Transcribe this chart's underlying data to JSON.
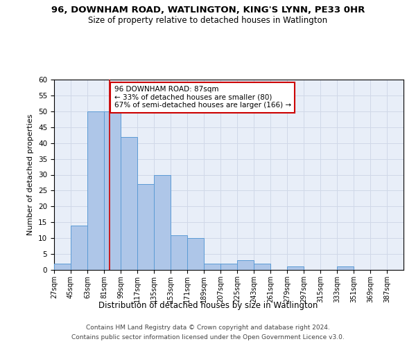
{
  "title": "96, DOWNHAM ROAD, WATLINGTON, KING'S LYNN, PE33 0HR",
  "subtitle": "Size of property relative to detached houses in Watlington",
  "xlabel": "Distribution of detached houses by size in Watlington",
  "ylabel": "Number of detached properties",
  "bar_values": [
    2,
    14,
    50,
    50,
    42,
    27,
    30,
    11,
    10,
    2,
    2,
    3,
    2,
    0,
    1,
    0,
    0,
    1
  ],
  "bin_labels": [
    "27sqm",
    "45sqm",
    "63sqm",
    "81sqm",
    "99sqm",
    "117sqm",
    "135sqm",
    "153sqm",
    "171sqm",
    "189sqm",
    "207sqm",
    "225sqm",
    "243sqm",
    "261sqm",
    "279sqm",
    "297sqm",
    "315sqm",
    "333sqm",
    "351sqm",
    "369sqm",
    "387sqm"
  ],
  "bar_color": "#aec6e8",
  "bar_edge_color": "#5b9bd5",
  "property_line_x": 87,
  "annotation_text": "96 DOWNHAM ROAD: 87sqm\n← 33% of detached houses are smaller (80)\n67% of semi-detached houses are larger (166) →",
  "annotation_box_color": "#ffffff",
  "annotation_box_edge": "#cc0000",
  "red_line_color": "#cc0000",
  "ylim": [
    0,
    60
  ],
  "yticks": [
    0,
    5,
    10,
    15,
    20,
    25,
    30,
    35,
    40,
    45,
    50,
    55,
    60
  ],
  "grid_color": "#d0d8e8",
  "background_color": "#e8eef8",
  "footer_line1": "Contains HM Land Registry data © Crown copyright and database right 2024.",
  "footer_line2": "Contains public sector information licensed under the Open Government Licence v3.0.",
  "bin_edges": [
    27,
    45,
    63,
    81,
    99,
    117,
    135,
    153,
    171,
    189,
    207,
    225,
    243,
    261,
    279,
    297,
    315,
    333,
    351,
    369,
    387
  ]
}
